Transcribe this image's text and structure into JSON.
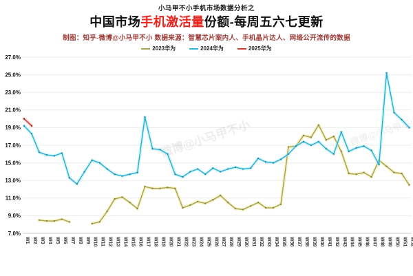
{
  "header": {
    "kicker": "小马甲不小手机市场数据分析之",
    "title_prefix": "中国市场",
    "title_highlight": "手机激活量",
    "title_suffix": "份额-每周五六七更新",
    "subtitle": "制图：知乎-微博@小马甲不小  数据来源：智慧芯片案内人、手机晶片达人、网络公开流传的数据"
  },
  "watermark": {
    "text": "微博@小马甲不小",
    "color": "#000000",
    "opacity_main": 0.07,
    "opacity_side": 0.05
  },
  "colors": {
    "title_highlight": "#e8241f",
    "subtitle": "#9c3b37",
    "gridline": "#ebebeb",
    "axis_line": "#c9c9c9",
    "tick_text": "#333333"
  },
  "chart_data": {
    "type": "line",
    "x": [
      "W1",
      "W2",
      "W3",
      "W4",
      "W5",
      "W6",
      "W7",
      "W8",
      "W9",
      "W10",
      "W11",
      "W12",
      "W13",
      "W14",
      "W15",
      "W16",
      "W17",
      "W18",
      "W19",
      "W20",
      "W21",
      "W22",
      "W23",
      "W24",
      "W25",
      "W26",
      "W27",
      "W28",
      "W29",
      "W30",
      "W31",
      "W32",
      "W33",
      "W34",
      "W35",
      "W36",
      "W37",
      "W38",
      "W39",
      "W40",
      "W41",
      "W42",
      "W43",
      "W44",
      "W45",
      "W46",
      "W47",
      "W48",
      "W49",
      "W50",
      "W51",
      "W52"
    ],
    "ylim": [
      7,
      27
    ],
    "ytick_labels": [
      "27.0%",
      "25.0%",
      "23.0%",
      "21.0%",
      "19.0%",
      "17.0%",
      "15.0%",
      "13.0%",
      "11.0%",
      "9.0%",
      "7.0%"
    ],
    "ytick_values": [
      27,
      25,
      23,
      21,
      19,
      17,
      15,
      13,
      11,
      9,
      7
    ],
    "grid": true,
    "legend_position": "top",
    "series": [
      {
        "name": "2023华为",
        "color": "#a8a04f",
        "halo": "#eae48a",
        "marker": "#8a8440",
        "values": [
          null,
          null,
          8.5,
          8.4,
          8.4,
          8.6,
          8.3,
          null,
          null,
          8.1,
          8.3,
          9.5,
          10.9,
          11.1,
          10.5,
          9.8,
          12.3,
          12.1,
          12.1,
          12.2,
          12.1,
          9.9,
          10.2,
          10.6,
          10.4,
          10.8,
          11.3,
          10.5,
          9.8,
          9.7,
          10.1,
          10.5,
          9.9,
          9.9,
          10.3,
          16.8,
          16.9,
          18.1,
          17.9,
          19.3,
          17.6,
          18.0,
          16.3,
          13.8,
          13.7,
          13.9,
          13.4,
          15.3,
          14.6,
          13.9,
          13.8,
          12.5
        ]
      },
      {
        "name": "2024华为",
        "color": "#2aaed3",
        "halo": "#9fe8f2",
        "marker": "#1b8fae",
        "values": [
          19.2,
          18.3,
          16.2,
          15.9,
          15.8,
          16.1,
          13.3,
          12.6,
          14.0,
          15.3,
          15.0,
          14.3,
          13.7,
          13.5,
          13.7,
          13.9,
          20.2,
          16.6,
          16.5,
          16.0,
          13.7,
          13.4,
          14.0,
          14.3,
          13.7,
          14.4,
          14.0,
          14.3,
          14.5,
          14.3,
          14.4,
          15.5,
          15.1,
          15.0,
          15.4,
          16.0,
          16.9,
          17.4,
          17.0,
          17.4,
          16.6,
          16.0,
          18.5,
          16.3,
          16.7,
          16.9,
          16.4,
          14.8,
          25.2,
          20.7,
          19.9,
          19.0
        ]
      },
      {
        "name": "2025华为",
        "color": "#c43a2f",
        "halo": "#e89a90",
        "marker": "#a02a20",
        "values": [
          20.0,
          19.2,
          null,
          null,
          null,
          null,
          null,
          null,
          null,
          null,
          null,
          null,
          null,
          null,
          null,
          null,
          null,
          null,
          null,
          null,
          null,
          null,
          null,
          null,
          null,
          null,
          null,
          null,
          null,
          null,
          null,
          null,
          null,
          null,
          null,
          null,
          null,
          null,
          null,
          null,
          null,
          null,
          null,
          null,
          null,
          null,
          null,
          null,
          null,
          null,
          null,
          null
        ]
      }
    ]
  }
}
